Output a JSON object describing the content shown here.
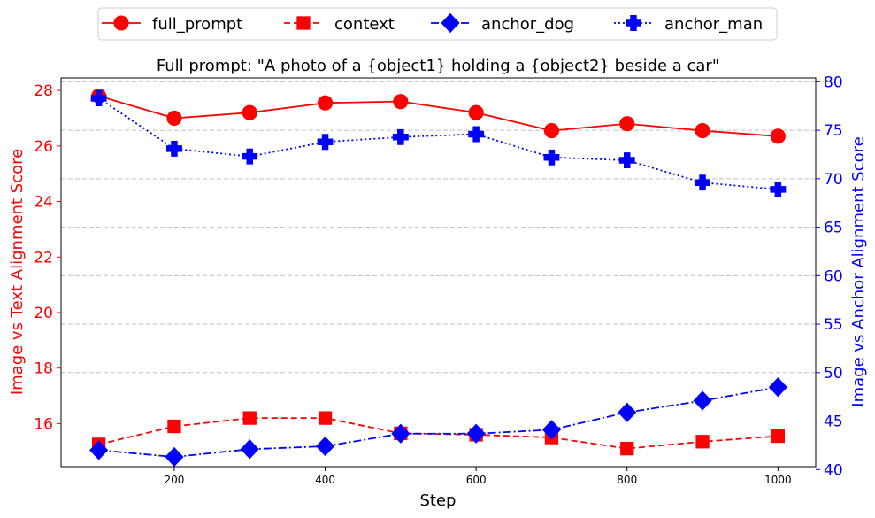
{
  "chart_data": {
    "type": "line",
    "title": "Full prompt: \"A photo of a {object1} holding a {object2} beside a car\"",
    "xlabel": "Step",
    "ylabel_left": "Image vs Text Alignment Score",
    "ylabel_right": "Image vs Anchor Alignment Score",
    "left_axis_color": "#ff0000",
    "right_axis_color": "#0000ff",
    "x": [
      100,
      200,
      300,
      400,
      500,
      600,
      700,
      800,
      900,
      1000
    ],
    "xlim": [
      50,
      1050
    ],
    "x_ticks": [
      200,
      400,
      600,
      800,
      1000
    ],
    "ylim_left": [
      14.45,
      28.45
    ],
    "y_ticks_left": [
      16,
      18,
      20,
      22,
      24,
      26,
      28
    ],
    "ylim_right": [
      40.3,
      80.4
    ],
    "y_ticks_right": [
      40,
      45,
      50,
      55,
      60,
      65,
      70,
      75,
      80
    ],
    "grid": "horizontal dashed, right axis",
    "legend_position": "top-center, outside",
    "series": [
      {
        "name": "full_prompt",
        "axis": "left",
        "color": "#ff0000",
        "line": "solid",
        "marker": "circle",
        "values": [
          27.8,
          27.0,
          27.2,
          27.55,
          27.6,
          27.2,
          26.55,
          26.8,
          26.55,
          26.35
        ]
      },
      {
        "name": "context",
        "axis": "left",
        "color": "#ff0000",
        "line": "dashed",
        "marker": "square",
        "values": [
          15.25,
          15.9,
          16.2,
          16.2,
          15.65,
          15.6,
          15.5,
          15.1,
          15.35,
          15.55
        ]
      },
      {
        "name": "anchor_dog",
        "axis": "right",
        "color": "#0000ff",
        "line": "dashdot",
        "marker": "diamond",
        "values": [
          42.0,
          41.3,
          42.1,
          42.4,
          43.7,
          43.7,
          44.1,
          45.9,
          47.1,
          48.5
        ]
      },
      {
        "name": "anchor_man",
        "axis": "right",
        "color": "#0000ff",
        "line": "dotted",
        "marker": "plus",
        "values": [
          78.3,
          73.1,
          72.3,
          73.8,
          74.3,
          74.6,
          72.2,
          71.9,
          69.6,
          68.9
        ]
      }
    ]
  }
}
